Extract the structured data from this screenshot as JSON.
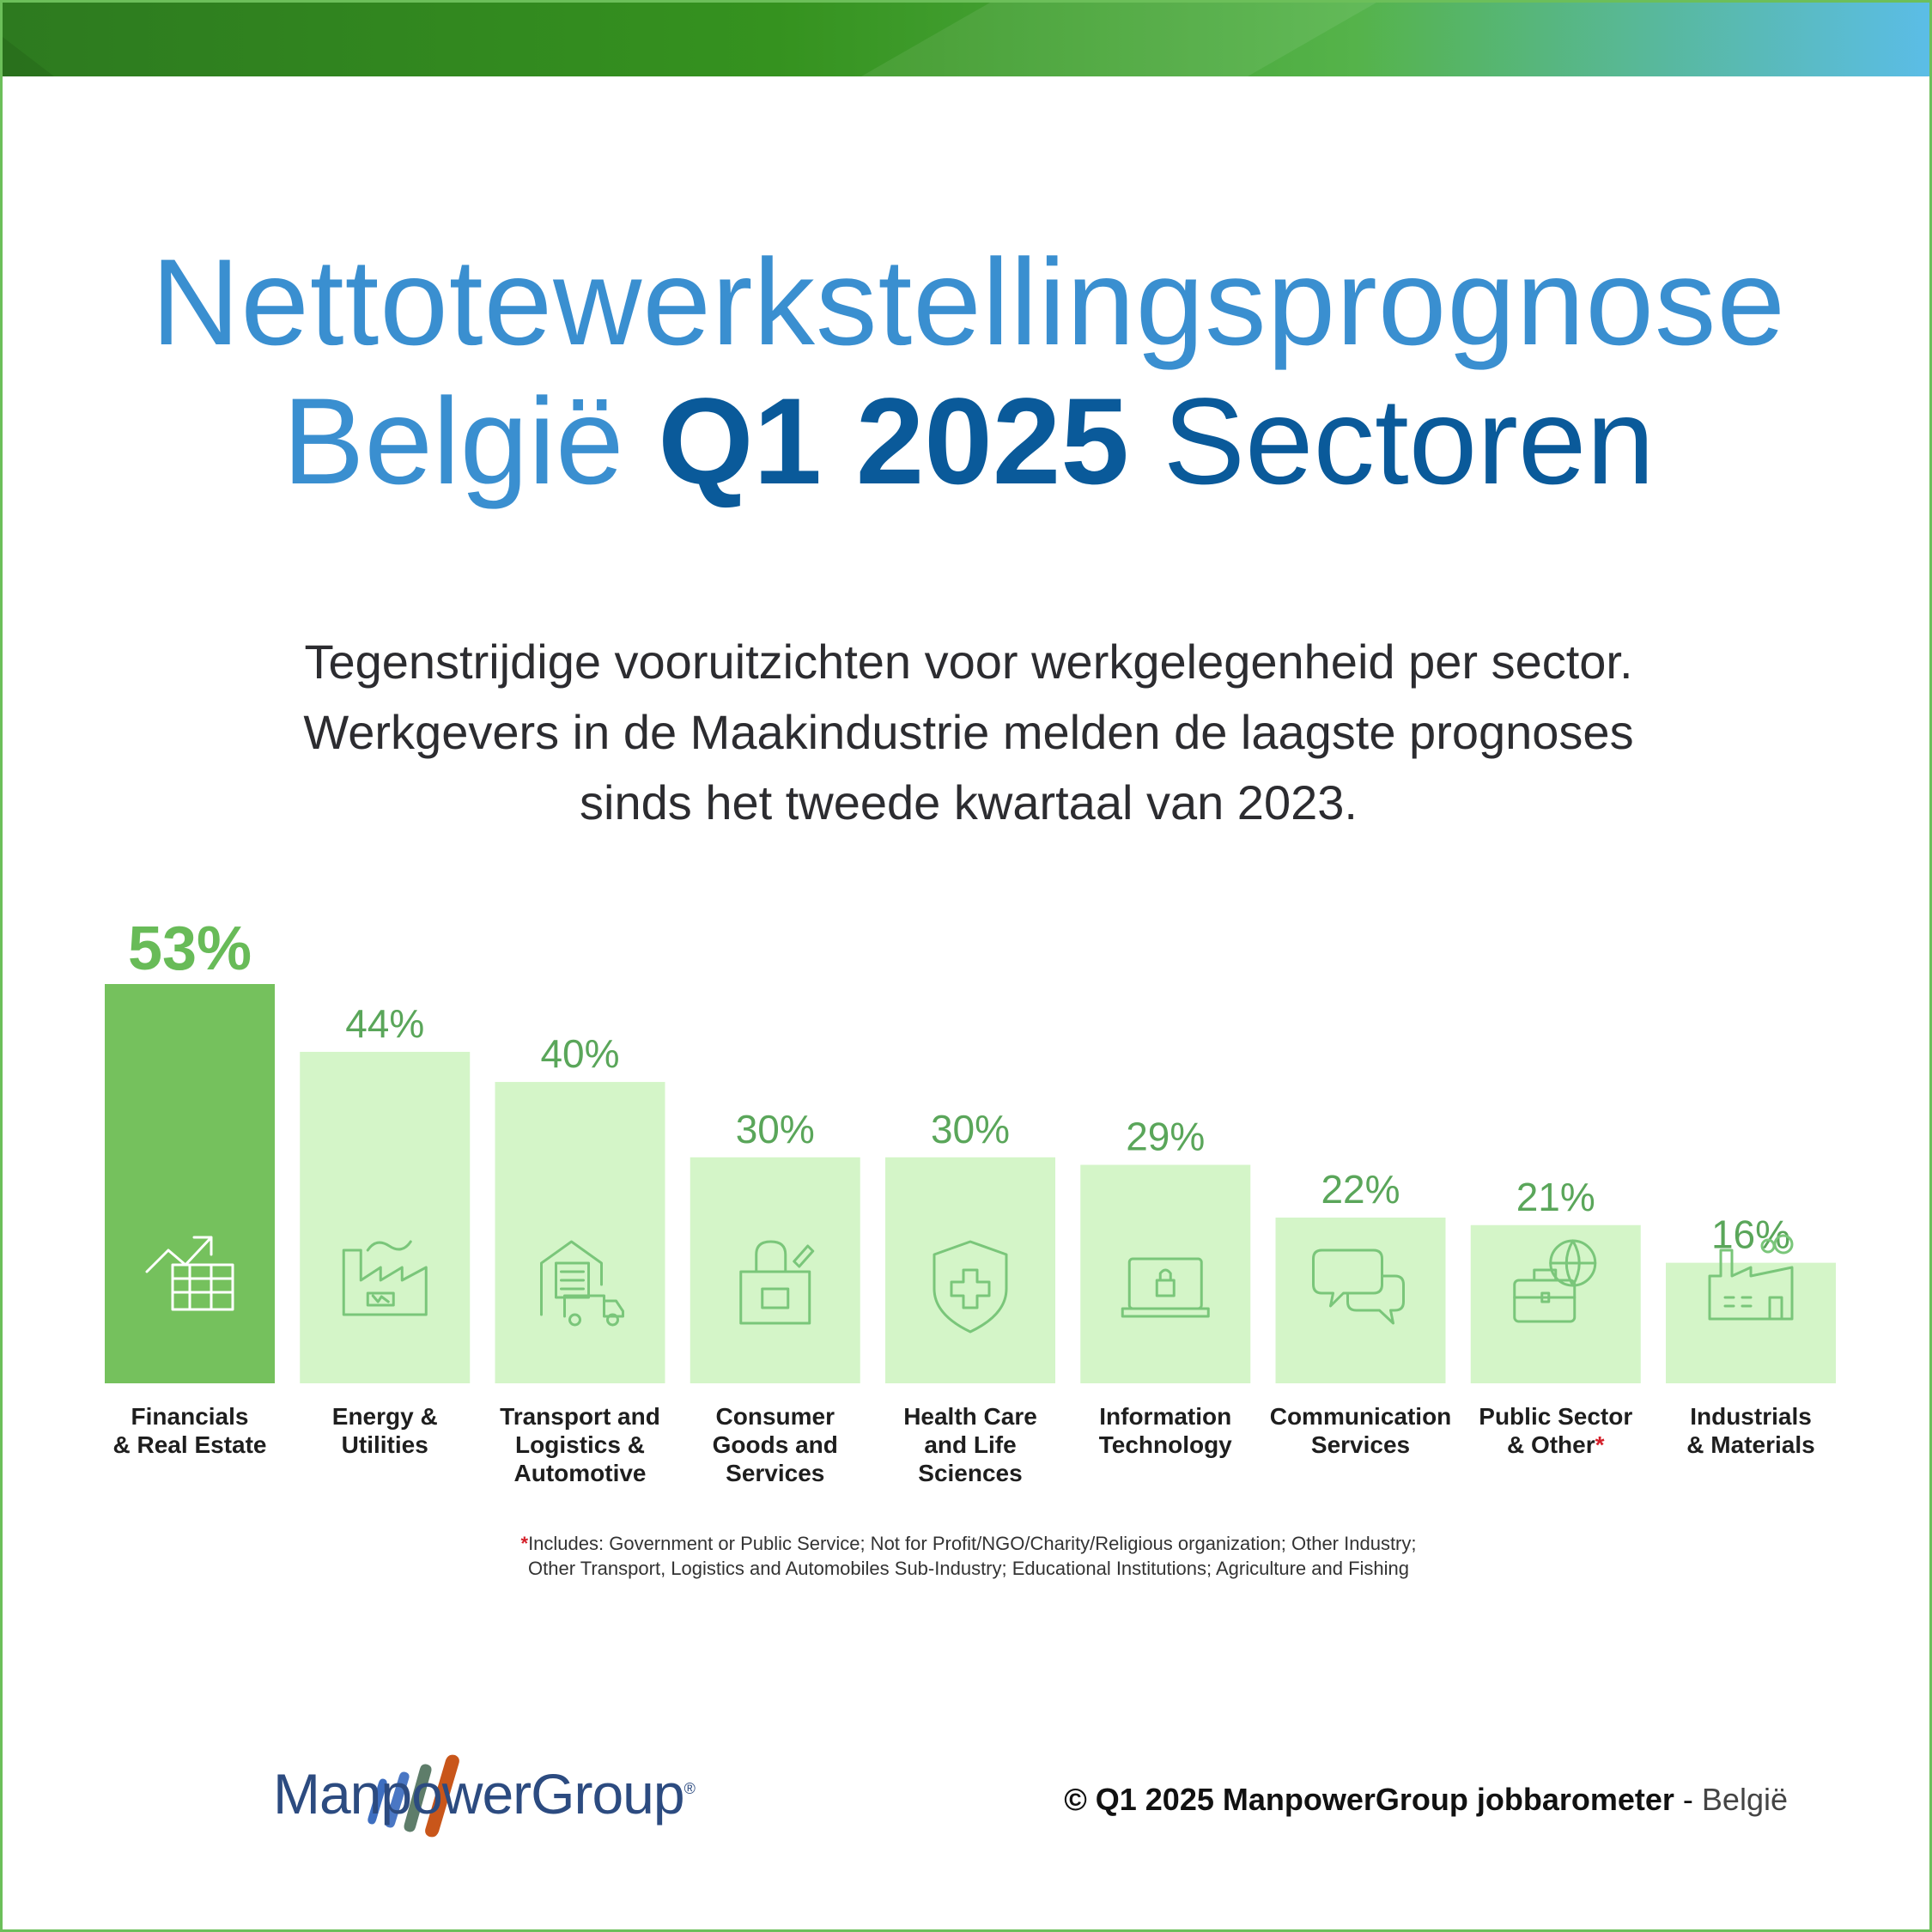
{
  "title": {
    "line1": "Nettotewerkstellingsprognose",
    "line2_part1": "België ",
    "line2_bold": "Q1 2025",
    "line2_part3": " Sectoren"
  },
  "subtitle": {
    "line1": "Tegenstrijdige vooruitzichten voor werkgelegenheid per sector.",
    "line2": "Werkgevers in de Maakindustrie melden de laagste prognoses",
    "line3": "sinds het tweede kwartaal van 2023."
  },
  "chart_data": {
    "type": "bar",
    "categories": [
      [
        "Financials",
        "& Real Estate"
      ],
      [
        "Energy &",
        "Utilities"
      ],
      [
        "Transport and",
        "Logistics &",
        "Automotive"
      ],
      [
        "Consumer",
        "Goods and",
        "Services"
      ],
      [
        "Health Care",
        "and Life",
        "Sciences"
      ],
      [
        "Information",
        "Technology"
      ],
      [
        "Communication",
        "Services"
      ],
      [
        "Public Sector",
        "& Other"
      ],
      [
        "Industrials",
        "& Materials"
      ]
    ],
    "values": [
      53,
      44,
      40,
      30,
      30,
      29,
      22,
      21,
      16
    ],
    "value_labels": [
      "53%",
      "44%",
      "40%",
      "30%",
      "30%",
      "29%",
      "22%",
      "21%",
      "16%"
    ],
    "icons": [
      "financial-chart-icon",
      "factory-energy-icon",
      "warehouse-truck-icon",
      "shopping-bag-icon",
      "health-shield-icon",
      "laptop-lock-icon",
      "chat-bubbles-icon",
      "briefcase-globe-icon",
      "industrial-plant-icon"
    ],
    "asterisk_index": 7,
    "ylim": [
      0,
      53
    ],
    "highlight_index": 0,
    "colors": {
      "highlight": "#75c15d",
      "bar": "#d4f5c8",
      "label": "#5aa65a",
      "highlight_label": "#68bb58",
      "icon_light": "#7ac67a",
      "icon_dark": "#ffffff",
      "axis_text": "#1e1e1e"
    }
  },
  "footnote": {
    "marker": "*",
    "line1": "Includes: Government or Public Service; Not for Profit/NGO/Charity/Religious organization; Other Industry;",
    "line2": "Other Transport, Logistics and Automobiles Sub-Industry; Educational Institutions; Agriculture and Fishing"
  },
  "brand": {
    "name": "ManpowerGroup",
    "registered": "®"
  },
  "credit": {
    "main": "© Q1 2025 ManpowerGroup jobbarometer",
    "separator": " - ",
    "country": "België"
  }
}
